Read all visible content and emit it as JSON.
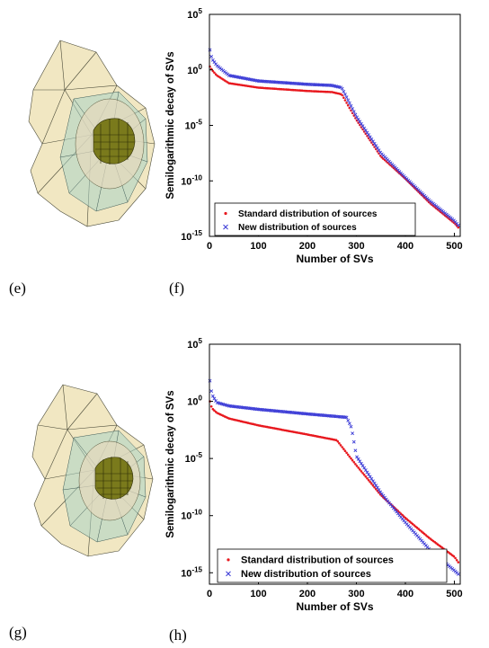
{
  "panel_labels": {
    "e": "(e)",
    "f": "(f)",
    "g": "(g)",
    "h": "(h)"
  },
  "colors": {
    "standard": "#e8191f",
    "new": "#3a3ad6",
    "mesh_outer": "#e9d9a0",
    "mesh_mid": "#b8d8d0",
    "mesh_inner": "#6a6a18"
  },
  "chart_data": [
    {
      "type": "scatter",
      "ylabel": "Semilogarithmic decay of SVs",
      "xlabel": "Number of SVs",
      "xlim": [
        0,
        512
      ],
      "ylim_log10": [
        -15,
        5
      ],
      "yscale": "log",
      "x_ticks": [
        0,
        100,
        200,
        300,
        400,
        500
      ],
      "y_ticks": [
        {
          "base": "10",
          "exp": "5",
          "log": 5
        },
        {
          "base": "10",
          "exp": "0",
          "log": 0
        },
        {
          "base": "10",
          "exp": "-5",
          "log": -5
        },
        {
          "base": "10",
          "exp": "-10",
          "log": -10
        },
        {
          "base": "10",
          "exp": "-15",
          "log": -15
        }
      ],
      "legend_position": "bottom-left",
      "series": [
        {
          "name": "Standard distribution of sources",
          "marker": "dot",
          "knots_x": [
            1,
            5,
            15,
            40,
            100,
            200,
            250,
            270,
            300,
            350,
            400,
            450,
            500,
            510
          ],
          "knots_log10": [
            0.3,
            0.0,
            -0.5,
            -1.2,
            -1.6,
            -1.9,
            -2.0,
            -2.2,
            -4.5,
            -7.8,
            -9.8,
            -12.0,
            -13.8,
            -14.3
          ]
        },
        {
          "name": "New distribution of sources",
          "marker": "cross",
          "knots_x": [
            1,
            5,
            15,
            40,
            100,
            200,
            250,
            270,
            300,
            350,
            400,
            450,
            500,
            510
          ],
          "knots_log10": [
            1.8,
            1.0,
            0.4,
            -0.5,
            -1.0,
            -1.3,
            -1.4,
            -1.6,
            -4.2,
            -7.5,
            -9.7,
            -11.8,
            -13.6,
            -14.1
          ]
        }
      ]
    },
    {
      "type": "scatter",
      "ylabel": "Semilogarithmic decay of SVs",
      "xlabel": "Number of SVs",
      "xlim": [
        0,
        512
      ],
      "ylim_log10": [
        -16,
        5
      ],
      "yscale": "log",
      "x_ticks": [
        0,
        100,
        200,
        300,
        400,
        500
      ],
      "y_ticks": [
        {
          "base": "10",
          "exp": "5",
          "log": 5
        },
        {
          "base": "10",
          "exp": "0",
          "log": 0
        },
        {
          "base": "10",
          "exp": "-5",
          "log": -5
        },
        {
          "base": "10",
          "exp": "-10",
          "log": -10
        },
        {
          "base": "10",
          "exp": "-15",
          "log": -15
        }
      ],
      "legend_position": "bottom-left",
      "series": [
        {
          "name": "Standard distribution of sources",
          "marker": "dot",
          "knots_x": [
            1,
            5,
            15,
            40,
            100,
            200,
            260,
            300,
            350,
            400,
            450,
            500,
            510
          ],
          "knots_log10": [
            0.0,
            -0.6,
            -1.0,
            -1.5,
            -2.1,
            -2.9,
            -3.4,
            -5.6,
            -8.2,
            -10.2,
            -12.0,
            -13.6,
            -14.2
          ]
        },
        {
          "name": "New distribution of sources",
          "marker": "cross",
          "knots_x": [
            1,
            5,
            15,
            40,
            100,
            200,
            280,
            290,
            300,
            350,
            400,
            450,
            500,
            510
          ],
          "knots_log10": [
            1.8,
            0.6,
            -0.1,
            -0.4,
            -0.7,
            -1.1,
            -1.4,
            -2.3,
            -4.8,
            -8.0,
            -10.6,
            -13.0,
            -14.8,
            -15.2
          ]
        }
      ]
    }
  ]
}
